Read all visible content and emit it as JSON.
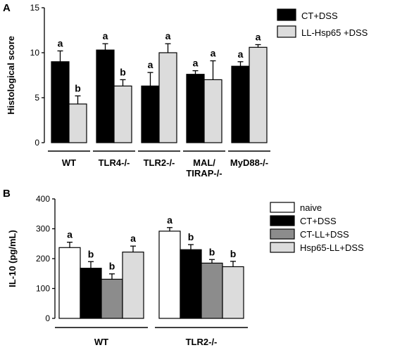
{
  "colors": {
    "black": "#000000",
    "light": "#dcdcdc",
    "white": "#ffffff",
    "gray": "#8c8c8c"
  },
  "chart_data": [
    {
      "panel": "A",
      "type": "bar",
      "ylabel": "Histological score",
      "ylim": [
        0,
        15
      ],
      "yticks": [
        "0",
        "5",
        "10",
        "15"
      ],
      "categories": [
        "WT",
        "TLR4-/-",
        "TLR2-/-",
        "MAL/TIRAP-/-",
        "MyD88-/-"
      ],
      "category_lines": [
        [
          "WT"
        ],
        [
          "TLR4-/-"
        ],
        [
          "TLR2-/-"
        ],
        [
          "MAL/",
          "TIRAP-/-"
        ],
        [
          "MyD88-/-"
        ]
      ],
      "legend_position": "top-right",
      "series": [
        {
          "name": "CT+DSS",
          "color": "#000000",
          "values": [
            9.0,
            10.3,
            6.3,
            7.6,
            8.5
          ],
          "errors": [
            1.2,
            0.7,
            1.5,
            0.4,
            0.5
          ],
          "labels": [
            "a",
            "a",
            "a",
            "a",
            "a"
          ]
        },
        {
          "name": "LL-Hsp65 +DSS",
          "color": "#dcdcdc",
          "values": [
            4.3,
            6.3,
            10.0,
            7.0,
            10.6
          ],
          "errors": [
            0.9,
            0.7,
            1.0,
            2.1,
            0.3
          ],
          "labels": [
            "b",
            "b",
            "a",
            "a",
            "a"
          ]
        }
      ]
    },
    {
      "panel": "B",
      "type": "bar",
      "ylabel": "IL-10 (pg/mL)",
      "ylim": [
        0,
        400
      ],
      "yticks": [
        "0",
        "100",
        "200",
        "300",
        "400"
      ],
      "categories": [
        "WT",
        "TLR2-/-"
      ],
      "legend_position": "top-right",
      "series": [
        {
          "name": "naive",
          "color": "#ffffff",
          "values": [
            237,
            292
          ],
          "errors": [
            18,
            12
          ],
          "labels": [
            "a",
            "a"
          ]
        },
        {
          "name": "CT+DSS",
          "color": "#000000",
          "values": [
            168,
            230
          ],
          "errors": [
            22,
            17
          ],
          "labels": [
            "b",
            "b"
          ]
        },
        {
          "name": "CT-LL+DSS",
          "color": "#8c8c8c",
          "values": [
            131,
            185
          ],
          "errors": [
            18,
            12
          ],
          "labels": [
            "b",
            "b"
          ]
        },
        {
          "name": "Hsp65-LL+DSS",
          "color": "#dcdcdc",
          "values": [
            222,
            173
          ],
          "errors": [
            20,
            18
          ],
          "labels": [
            "a",
            "b"
          ]
        }
      ]
    }
  ]
}
